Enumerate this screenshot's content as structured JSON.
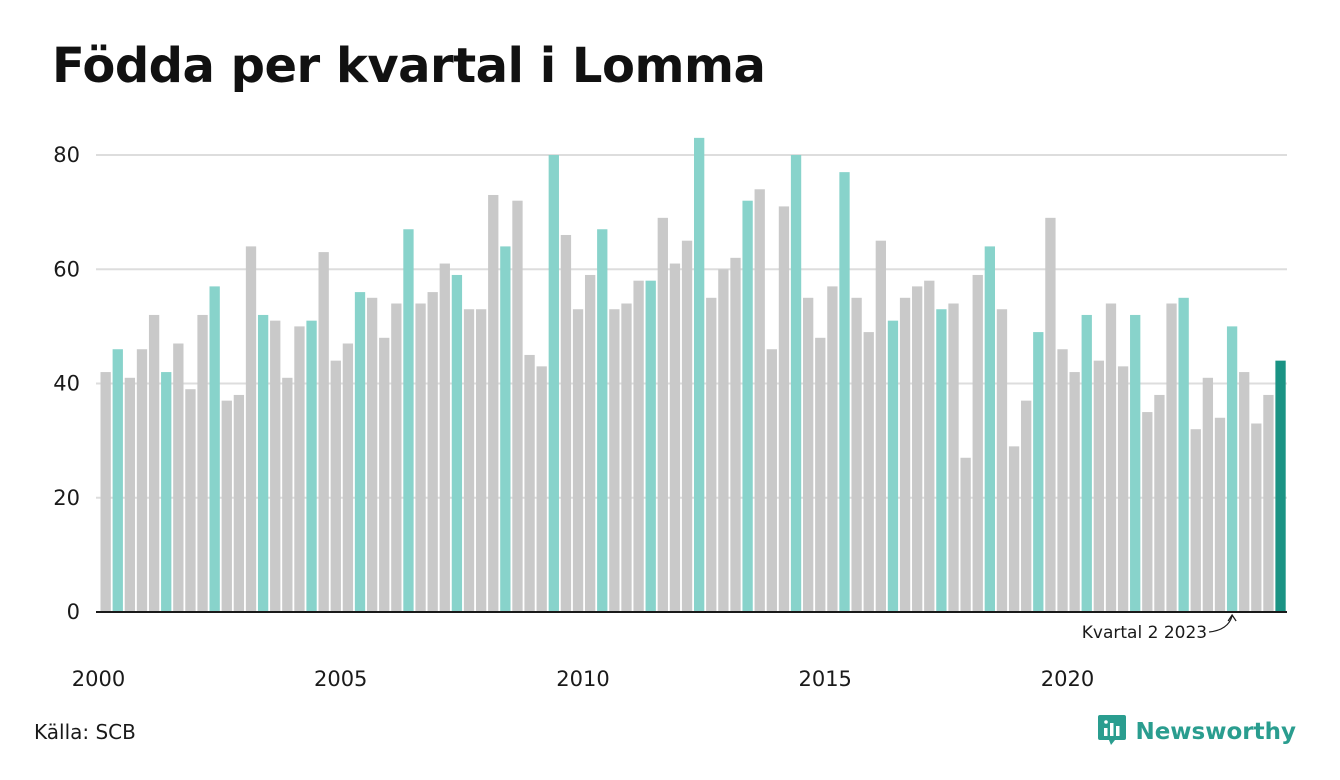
{
  "title": "Födda per kvartal i Lomma",
  "source": "Källa: SCB",
  "brand": {
    "name": "Newsworthy",
    "icon": "newsworthy-logo-icon"
  },
  "colors": {
    "gray": "#c9c9c9",
    "q2": "#88d3cb",
    "latest": "#1a9384",
    "grid": "#dddddd",
    "axis": "#1a1a1a",
    "brand": "#2a9d8f"
  },
  "chart_data": {
    "type": "bar",
    "title": "Födda per kvartal i Lomma",
    "xlabel": "",
    "ylabel": "",
    "ylim": [
      0,
      85
    ],
    "yticks": [
      0,
      20,
      40,
      60,
      80
    ],
    "xtick_labels": [
      "2000",
      "2005",
      "2010",
      "2015",
      "2020"
    ],
    "first_year": 2000,
    "values": [
      42,
      46,
      41,
      46,
      52,
      42,
      47,
      39,
      52,
      57,
      37,
      38,
      64,
      52,
      51,
      41,
      50,
      51,
      63,
      44,
      47,
      56,
      55,
      48,
      54,
      67,
      54,
      56,
      61,
      59,
      53,
      53,
      73,
      64,
      72,
      45,
      43,
      80,
      66,
      53,
      59,
      67,
      53,
      54,
      58,
      58,
      69,
      61,
      65,
      83,
      55,
      60,
      62,
      72,
      74,
      46,
      71,
      80,
      55,
      48,
      57,
      77,
      55,
      49,
      65,
      51,
      55,
      57,
      58,
      53,
      54,
      27,
      59,
      64,
      53,
      29,
      37,
      49,
      69,
      46,
      42,
      52,
      44,
      54,
      43,
      52,
      35,
      38,
      54,
      55,
      32,
      41,
      34,
      50,
      42,
      33,
      38,
      44
    ],
    "highlight": "quarter 2 of each year",
    "annotation": "Kvartal 2 2023",
    "grid": true,
    "legend": "none"
  }
}
